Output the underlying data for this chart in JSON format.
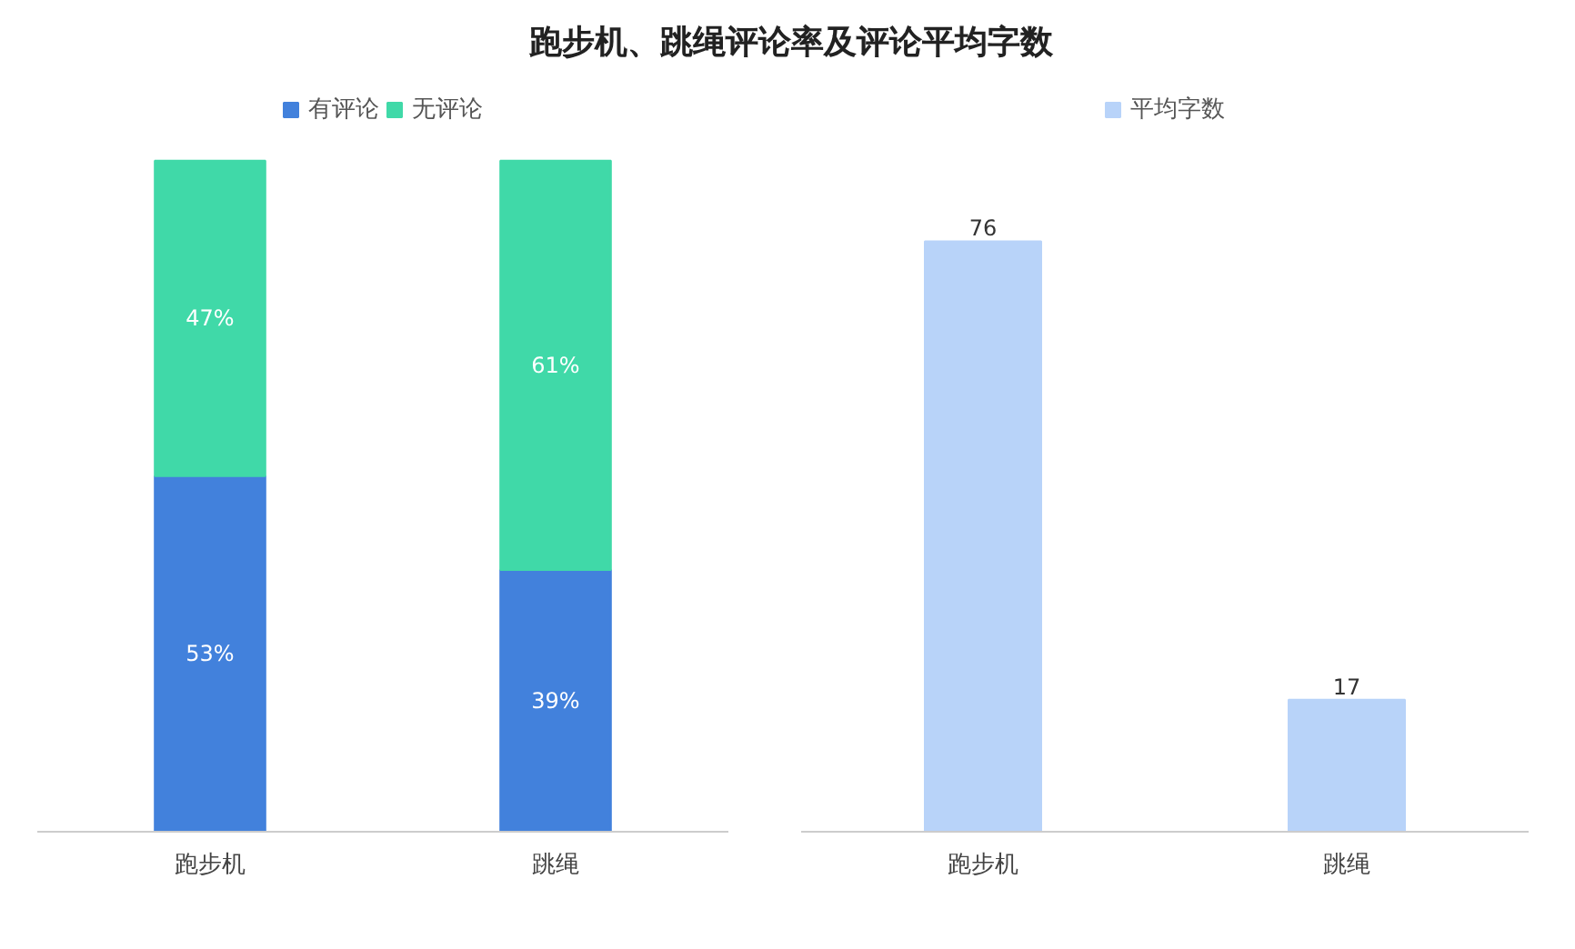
{
  "chart_data": [
    {
      "type": "bar",
      "title": "跑步机、跳绳评论率及评论平均字数",
      "categories": [
        "跑步机",
        "跳绳"
      ],
      "stacked": true,
      "legend": "top",
      "series": [
        {
          "name": "有评论",
          "color": "#4281dc",
          "values": [
            53,
            39
          ],
          "value_labels": [
            "53%",
            "39%"
          ]
        },
        {
          "name": "无评论",
          "color": "#40d9a8",
          "values": [
            47,
            61
          ],
          "value_labels": [
            "47%",
            "61%"
          ]
        }
      ]
    },
    {
      "type": "bar",
      "categories": [
        "跑步机",
        "跳绳"
      ],
      "legend": "top",
      "data_labels": true,
      "series": [
        {
          "name": "平均字数",
          "color": "#b8d3f9",
          "values": [
            76,
            17
          ]
        }
      ]
    }
  ]
}
